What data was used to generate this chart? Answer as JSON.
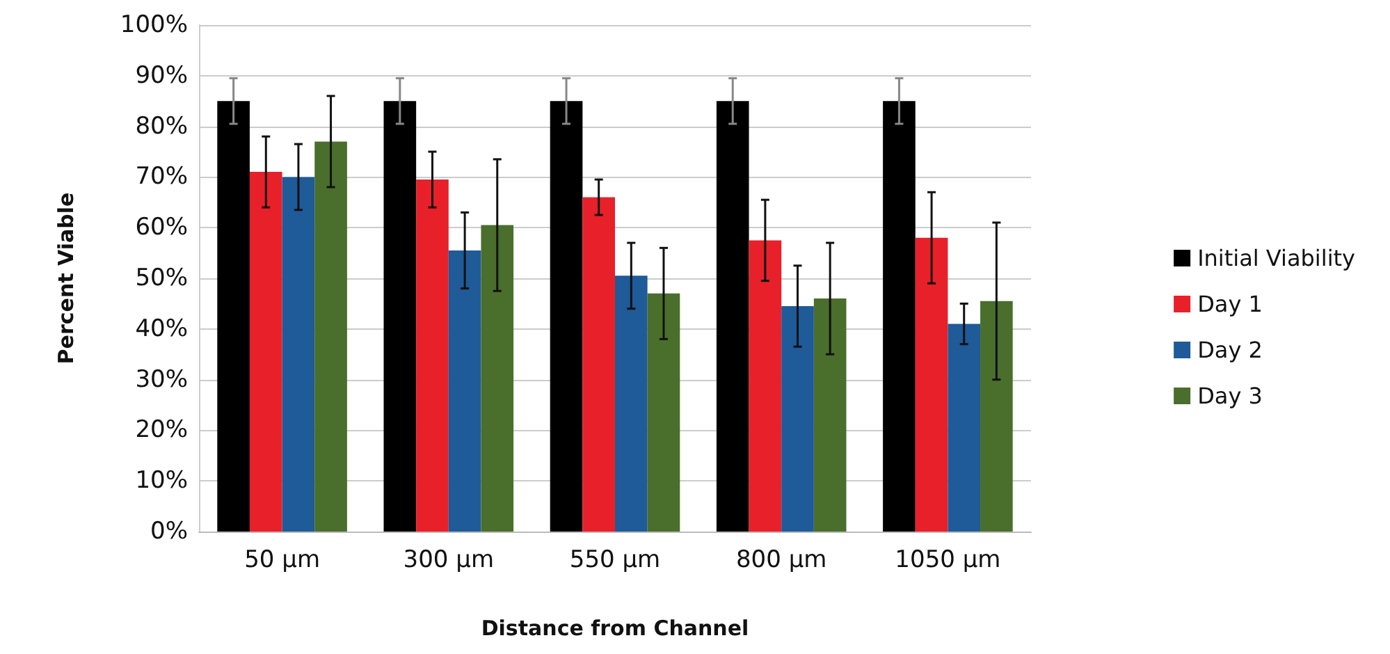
{
  "chart_data": {
    "type": "bar",
    "xlabel": "Distance from Channel",
    "ylabel": "Percent Viable",
    "categories": [
      "50 µm",
      "300 µm",
      "550 µm",
      "800 µm",
      "1050 µm"
    ],
    "series": [
      {
        "name": "Initial Viability",
        "color": "#000000",
        "values": [
          85,
          85,
          85,
          85,
          85
        ],
        "errors": [
          4.5,
          4.5,
          4.5,
          4.5,
          4.5
        ]
      },
      {
        "name": "Day 1",
        "color": "#e8202a",
        "values": [
          71,
          69.5,
          66,
          57.5,
          58
        ],
        "errors": [
          7,
          5.5,
          3.5,
          8,
          9
        ]
      },
      {
        "name": "Day 2",
        "color": "#1f5a99",
        "values": [
          70,
          55.5,
          50.5,
          44.5,
          41
        ],
        "errors": [
          6.5,
          7.5,
          6.5,
          8,
          4
        ]
      },
      {
        "name": "Day 3",
        "color": "#4a6e2c",
        "values": [
          77,
          60.5,
          47,
          46,
          45.5
        ],
        "errors": [
          9,
          13,
          9,
          11,
          15.5
        ]
      }
    ],
    "ylim": [
      0,
      100
    ],
    "yticks": [
      {
        "value": 0,
        "label": "0%"
      },
      {
        "value": 10,
        "label": "10%"
      },
      {
        "value": 20,
        "label": "20%"
      },
      {
        "value": 30,
        "label": "30%"
      },
      {
        "value": 40,
        "label": "40%"
      },
      {
        "value": 50,
        "label": "50%"
      },
      {
        "value": 60,
        "label": "60%"
      },
      {
        "value": 70,
        "label": "70%"
      },
      {
        "value": 80,
        "label": "80%"
      },
      {
        "value": 90,
        "label": "90%"
      },
      {
        "value": 100,
        "label": "100%"
      }
    ],
    "grid": "y",
    "legend": "right"
  }
}
